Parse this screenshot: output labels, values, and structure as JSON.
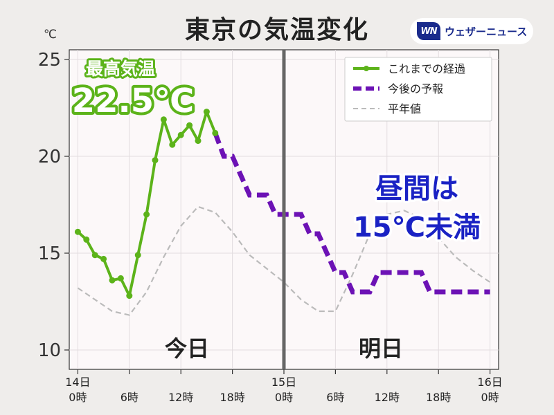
{
  "title": "東京の気温変化",
  "logo": {
    "mark": "WN",
    "text": "ウェザーニュース"
  },
  "chart_data": {
    "type": "line",
    "ylabel": "℃",
    "ylim": [
      9.0,
      25.5
    ],
    "yticks": [
      10,
      15,
      20,
      25
    ],
    "xlim": [
      -1.0,
      49.0
    ],
    "xticks": [
      {
        "x": 0,
        "line1": "14日",
        "line2": "0時"
      },
      {
        "x": 6,
        "line1": "",
        "line2": "6時"
      },
      {
        "x": 12,
        "line1": "",
        "line2": "12時"
      },
      {
        "x": 18,
        "line1": "",
        "line2": "18時"
      },
      {
        "x": 24,
        "line1": "15日",
        "line2": "0時"
      },
      {
        "x": 30,
        "line1": "",
        "line2": "6時"
      },
      {
        "x": 36,
        "line1": "",
        "line2": "12時"
      },
      {
        "x": 42,
        "line1": "",
        "line2": "18時"
      },
      {
        "x": 48,
        "line1": "16日",
        "line2": "0時"
      }
    ],
    "grid": true,
    "legend_position": "top-right",
    "divider_x": 24,
    "series": [
      {
        "name": "これまでの経過",
        "color": "#5cb31a",
        "style": "solid-markers",
        "x": [
          0,
          1,
          2,
          3,
          4,
          5,
          6,
          7,
          8,
          9,
          10,
          11,
          12,
          13,
          14,
          15,
          16
        ],
        "y": [
          16.1,
          15.7,
          14.9,
          14.7,
          13.6,
          13.7,
          12.8,
          14.9,
          17.0,
          19.8,
          21.9,
          20.6,
          21.1,
          21.6,
          20.8,
          22.3,
          21.2
        ]
      },
      {
        "name": "今後の予報",
        "color": "#6c12b5",
        "style": "dashed-step",
        "x": [
          16,
          17,
          18,
          19,
          20,
          21,
          22,
          23,
          24,
          25,
          26,
          27,
          28,
          29,
          30,
          31,
          32,
          33,
          34,
          35,
          36,
          37,
          38,
          39,
          40,
          41,
          42,
          43,
          44,
          45,
          46,
          47,
          48
        ],
        "y": [
          21.2,
          20,
          20,
          19,
          18,
          18,
          18,
          17,
          17,
          17,
          17,
          16,
          16,
          15,
          14,
          14,
          13,
          13,
          13,
          14,
          14,
          14,
          14,
          14,
          14,
          13,
          13,
          13,
          13,
          13,
          13,
          13,
          13
        ]
      },
      {
        "name": "平年値",
        "color": "#bbbbbb",
        "style": "dashed",
        "x": [
          0,
          2,
          4,
          6,
          8,
          10,
          12,
          14,
          16,
          18,
          20,
          22,
          24,
          26,
          28,
          30,
          32,
          34,
          36,
          38,
          40,
          42,
          44,
          46,
          48
        ],
        "y": [
          13.2,
          12.6,
          12.0,
          11.8,
          13.0,
          14.8,
          16.4,
          17.4,
          17.1,
          16.1,
          14.9,
          14.2,
          13.5,
          12.6,
          12.0,
          12.0,
          13.9,
          16.0,
          17.0,
          17.2,
          16.8,
          15.8,
          14.8,
          14.1,
          13.5
        ]
      }
    ],
    "annotations": {
      "today": "今日",
      "tomorrow": "明日",
      "max_label": "最高気温",
      "max_value": "22.5℃",
      "callout_line1": "昼間は",
      "callout_line2": "15℃未満"
    }
  }
}
